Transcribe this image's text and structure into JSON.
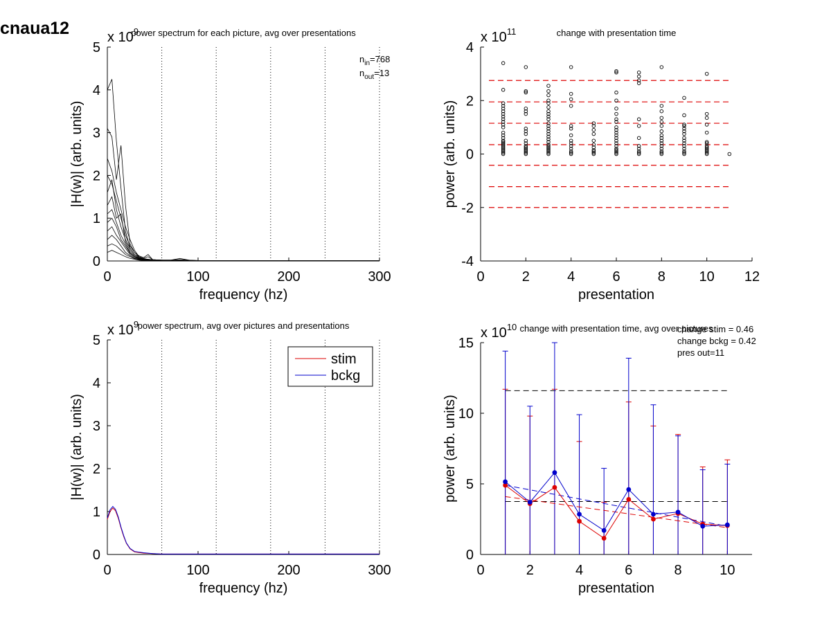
{
  "figure_label": "cnaua12",
  "chart_data": [
    {
      "type": "line",
      "title": "power spectrum for each picture, avg over presentations",
      "xlabel": "frequency (hz)",
      "ylabel": "|H(w)| (arb. units)",
      "exponent": "x 10",
      "exponent_power": "9",
      "xlim": [
        0,
        300
      ],
      "ylim": [
        0,
        5
      ],
      "xticks": [
        "0",
        "100",
        "200",
        "300"
      ],
      "yticks": [
        "0",
        "1",
        "2",
        "3",
        "4",
        "5"
      ],
      "vlines": [
        60,
        120,
        180,
        240,
        300
      ],
      "annotation_lines": [
        {
          "base": "n",
          "sub": "in",
          "rest": "=768"
        },
        {
          "base": "n",
          "sub": "out",
          "rest": "=13"
        }
      ],
      "x": [
        0,
        5,
        10,
        15,
        20,
        25,
        30,
        35,
        40,
        45,
        50,
        60,
        70,
        80,
        90,
        100,
        150,
        200,
        250,
        300
      ],
      "series": [
        {
          "values": [
            4.0,
            4.25,
            2.8,
            1.7,
            0.7,
            0.3,
            0.15,
            0.08,
            0.05,
            0.04,
            0.03,
            0.02,
            0.02,
            0.03,
            0.02,
            0.01,
            0.01,
            0.01,
            0.01,
            0.01
          ]
        },
        {
          "values": [
            3.1,
            2.9,
            1.9,
            2.7,
            1.3,
            0.4,
            0.2,
            0.12,
            0.08,
            0.15,
            0.03,
            0.02,
            0.02,
            0.06,
            0.02,
            0.01,
            0.01,
            0.01,
            0.01,
            0.01
          ]
        },
        {
          "values": [
            2.4,
            2.1,
            1.6,
            1.2,
            0.8,
            0.5,
            0.25,
            0.1,
            0.06,
            0.1,
            0.03,
            0.02,
            0.02,
            0.02,
            0.01,
            0.01,
            0.01,
            0.01,
            0.01,
            0.01
          ]
        },
        {
          "values": [
            2.0,
            1.8,
            1.4,
            1.0,
            0.6,
            0.35,
            0.2,
            0.1,
            0.05,
            0.04,
            0.02,
            0.02,
            0.01,
            0.02,
            0.01,
            0.01,
            0.01,
            0.01,
            0.01,
            0.01
          ]
        },
        {
          "values": [
            1.6,
            1.9,
            1.2,
            0.8,
            0.5,
            0.3,
            0.15,
            0.1,
            0.04,
            0.03,
            0.02,
            0.01,
            0.01,
            0.01,
            0.01,
            0.01,
            0.01,
            0.01,
            0.01,
            0.01
          ]
        },
        {
          "values": [
            1.3,
            1.5,
            1.0,
            1.1,
            0.45,
            0.25,
            0.12,
            0.07,
            0.05,
            0.03,
            0.02,
            0.01,
            0.01,
            0.02,
            0.01,
            0.01,
            0.01,
            0.01,
            0.01,
            0.01
          ]
        },
        {
          "values": [
            1.1,
            1.2,
            0.9,
            0.6,
            0.4,
            0.2,
            0.1,
            0.06,
            0.04,
            0.02,
            0.02,
            0.01,
            0.01,
            0.01,
            0.01,
            0.01,
            0.01,
            0.01,
            0.01,
            0.01
          ]
        },
        {
          "values": [
            0.9,
            1.0,
            0.8,
            0.5,
            0.35,
            0.18,
            0.1,
            0.05,
            0.03,
            0.02,
            0.01,
            0.01,
            0.01,
            0.01,
            0.01,
            0.01,
            0.01,
            0.01,
            0.01,
            0.01
          ]
        },
        {
          "values": [
            0.7,
            0.8,
            0.6,
            0.45,
            0.3,
            0.15,
            0.08,
            0.05,
            0.03,
            0.02,
            0.01,
            0.01,
            0.01,
            0.01,
            0.01,
            0.01,
            0.01,
            0.01,
            0.01,
            0.01
          ]
        },
        {
          "values": [
            0.5,
            0.6,
            0.5,
            0.35,
            0.2,
            0.12,
            0.06,
            0.04,
            0.02,
            0.02,
            0.01,
            0.01,
            0.01,
            0.01,
            0.01,
            0.01,
            0.01,
            0.01,
            0.01,
            0.01
          ]
        },
        {
          "values": [
            0.35,
            0.4,
            0.35,
            0.25,
            0.15,
            0.1,
            0.05,
            0.03,
            0.02,
            0.01,
            0.01,
            0.01,
            0.01,
            0.01,
            0.01,
            0.01,
            0.01,
            0.01,
            0.01,
            0.01
          ]
        },
        {
          "values": [
            0.2,
            0.25,
            0.2,
            0.15,
            0.1,
            0.06,
            0.04,
            0.02,
            0.01,
            0.01,
            0.01,
            0.01,
            0.01,
            0.01,
            0.01,
            0.01,
            0.01,
            0.01,
            0.01,
            0.01
          ]
        }
      ]
    },
    {
      "type": "scatter",
      "title": "change with presentation time",
      "xlabel": "presentation",
      "ylabel": "power (arb. units)",
      "exponent": "x 10",
      "exponent_power": "11",
      "xlim": [
        0,
        12
      ],
      "ylim": [
        -4,
        4
      ],
      "xticks": [
        "0",
        "2",
        "4",
        "6",
        "8",
        "10",
        "12"
      ],
      "yticks": [
        "-4",
        "-2",
        "0",
        "2",
        "4"
      ],
      "hlines": [
        2.75,
        1.95,
        1.15,
        0.35,
        -0.42,
        -1.22,
        -2.0
      ],
      "points": [
        {
          "x": 1,
          "y": [
            3.4,
            2.4,
            1.9,
            1.8,
            1.7,
            1.6,
            1.5,
            1.4,
            1.3,
            1.2,
            1.1,
            1.0,
            0.8,
            0.7,
            0.6,
            0.5,
            0.45,
            0.4,
            0.35,
            0.3,
            0.25,
            0.2,
            0.15,
            0.1,
            0.05,
            0.0
          ]
        },
        {
          "x": 2,
          "y": [
            3.25,
            2.35,
            2.3,
            1.7,
            1.6,
            1.5,
            0.95,
            0.85,
            0.75,
            0.5,
            0.4,
            0.3,
            0.25,
            0.2,
            0.15,
            0.1,
            0.05,
            0.0
          ]
        },
        {
          "x": 3,
          "y": [
            2.55,
            2.35,
            2.2,
            2.0,
            1.9,
            1.75,
            1.6,
            1.5,
            1.4,
            1.3,
            1.15,
            1.05,
            0.95,
            0.85,
            0.75,
            0.65,
            0.55,
            0.45,
            0.35,
            0.3,
            0.25,
            0.2,
            0.15,
            0.1,
            0.05,
            0.0
          ]
        },
        {
          "x": 4,
          "y": [
            3.25,
            2.25,
            2.05,
            1.8,
            1.05,
            0.95,
            0.7,
            0.5,
            0.4,
            0.3,
            0.2,
            0.1,
            0.05,
            0.0
          ]
        },
        {
          "x": 5,
          "y": [
            1.15,
            1.05,
            0.9,
            0.75,
            0.5,
            0.35,
            0.25,
            0.15,
            0.1,
            0.05,
            0.0
          ]
        },
        {
          "x": 6,
          "y": [
            3.1,
            3.05,
            2.3,
            2.0,
            1.7,
            1.5,
            1.3,
            1.2,
            1.0,
            0.9,
            0.8,
            0.7,
            0.6,
            0.5,
            0.4,
            0.3,
            0.2,
            0.15,
            0.1,
            0.05,
            0.0
          ]
        },
        {
          "x": 7,
          "y": [
            3.05,
            2.9,
            2.75,
            2.65,
            1.3,
            1.05,
            0.6,
            0.3,
            0.2,
            0.1,
            0.05,
            0.0
          ]
        },
        {
          "x": 8,
          "y": [
            3.25,
            1.8,
            1.6,
            1.35,
            1.2,
            1.05,
            0.85,
            0.7,
            0.6,
            0.5,
            0.4,
            0.3,
            0.2,
            0.1,
            0.05,
            0.0
          ]
        },
        {
          "x": 9,
          "y": [
            2.1,
            1.45,
            1.1,
            1.05,
            0.95,
            0.85,
            0.75,
            0.6,
            0.5,
            0.4,
            0.3,
            0.2,
            0.1,
            0.05,
            0.0
          ]
        },
        {
          "x": 10,
          "y": [
            3.0,
            1.5,
            1.35,
            1.1,
            0.8,
            0.45,
            0.4,
            0.3,
            0.25,
            0.2,
            0.15,
            0.1,
            0.05,
            0.0
          ]
        },
        {
          "x": 11,
          "y": [
            0.0
          ]
        }
      ]
    },
    {
      "type": "line",
      "title": "power spectrum, avg over pictures and presentations",
      "xlabel": "frequency (hz)",
      "ylabel": "|H(w)| (arb. units)",
      "exponent": "x 10",
      "exponent_power": "9",
      "xlim": [
        0,
        300
      ],
      "ylim": [
        0,
        5
      ],
      "xticks": [
        "0",
        "100",
        "200",
        "300"
      ],
      "yticks": [
        "0",
        "1",
        "2",
        "3",
        "4",
        "5"
      ],
      "vlines": [
        60,
        120,
        180,
        240,
        300
      ],
      "legend": {
        "placement": "top-right",
        "entries": [
          "stim",
          "bckg"
        ]
      },
      "x": [
        0,
        3,
        6,
        9,
        12,
        15,
        18,
        21,
        25,
        30,
        40,
        50,
        60,
        100,
        150,
        200,
        250,
        300
      ],
      "series": [
        {
          "name": "stim",
          "color": "#dd0000",
          "values": [
            0.82,
            1.0,
            1.08,
            1.02,
            0.85,
            0.62,
            0.42,
            0.26,
            0.13,
            0.06,
            0.03,
            0.02,
            0.01,
            0.01,
            0.01,
            0.01,
            0.01,
            0.01
          ]
        },
        {
          "name": "bckg",
          "color": "#0000cc",
          "values": [
            0.85,
            1.04,
            1.12,
            1.05,
            0.88,
            0.64,
            0.44,
            0.27,
            0.14,
            0.07,
            0.04,
            0.02,
            0.01,
            0.01,
            0.01,
            0.01,
            0.01,
            0.01
          ]
        }
      ]
    },
    {
      "type": "line",
      "title": "change with presentation time, avg over pictures",
      "xlabel": "presentation",
      "ylabel": "power (arb. units)",
      "exponent": "x 10",
      "exponent_power": "10",
      "xlim": [
        0,
        11
      ],
      "ylim": [
        0,
        15
      ],
      "xticks": [
        "0",
        "2",
        "4",
        "6",
        "8",
        "10"
      ],
      "yticks": [
        "0",
        "5",
        "10",
        "15"
      ],
      "annotations": [
        "change stim = 0.46",
        "change bckg = 0.42",
        "pres out=11"
      ],
      "hlines": [
        11.6,
        3.75
      ],
      "x": [
        1,
        2,
        3,
        4,
        5,
        6,
        7,
        8,
        9,
        10
      ],
      "series": [
        {
          "name": "stim",
          "color": "#dd0000",
          "values": [
            4.9,
            3.6,
            4.75,
            2.35,
            1.15,
            3.9,
            2.5,
            2.9,
            2.15,
            2.05
          ],
          "error_upper": [
            11.7,
            9.8,
            11.7,
            8.0,
            3.7,
            10.8,
            9.1,
            8.5,
            6.2,
            6.7
          ],
          "trend": [
            4.1,
            1.9
          ]
        },
        {
          "name": "bckg",
          "color": "#0000cc",
          "values": [
            5.15,
            3.7,
            5.8,
            2.85,
            1.7,
            4.6,
            2.85,
            3.0,
            2.0,
            2.1
          ],
          "error_upper": [
            14.4,
            10.5,
            15.0,
            9.9,
            6.1,
            13.9,
            10.6,
            8.4,
            6.0,
            6.4
          ],
          "trend": [
            4.9,
            2.0
          ]
        }
      ]
    }
  ]
}
